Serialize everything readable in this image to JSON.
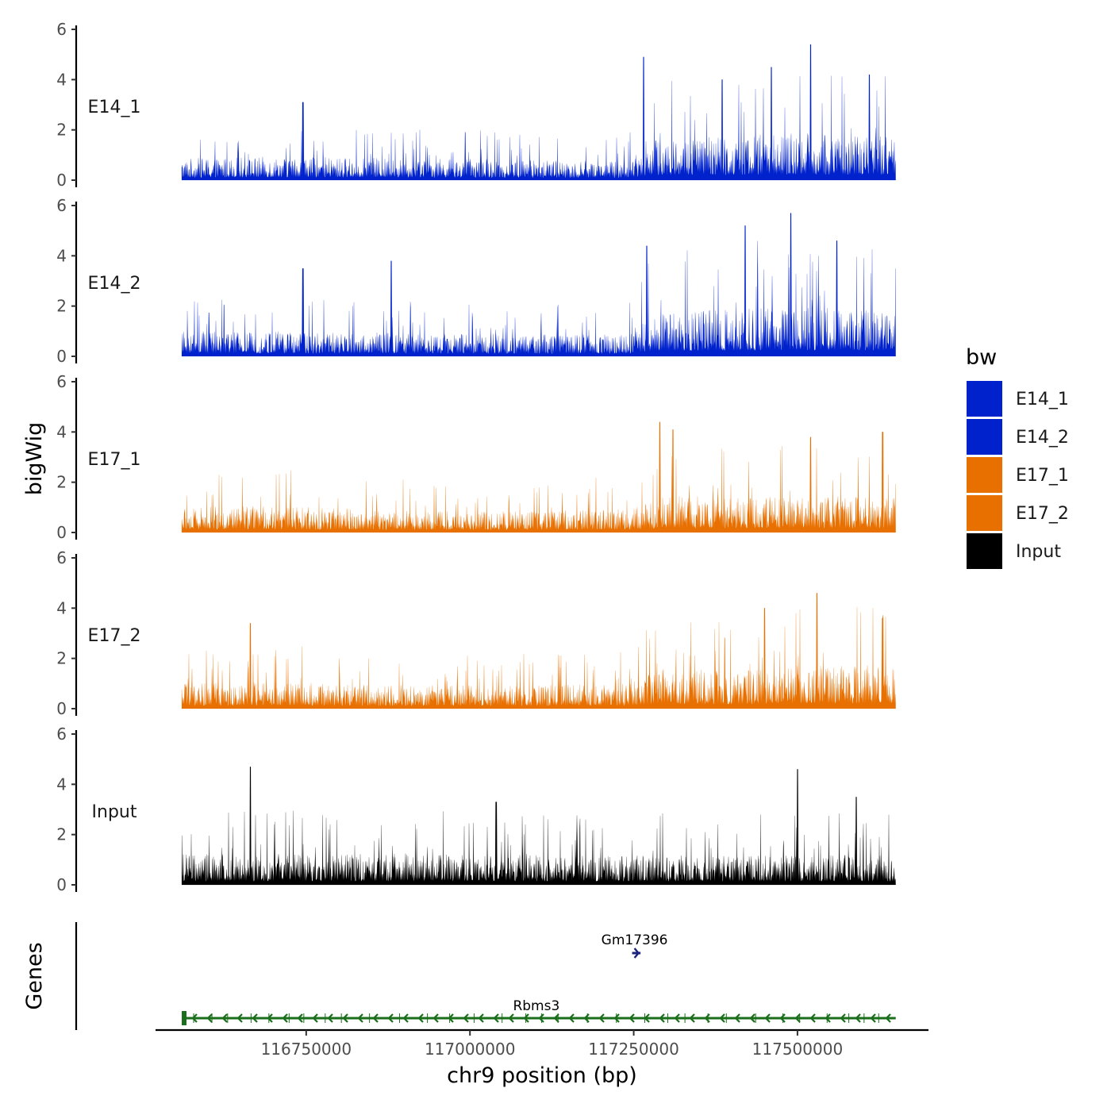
{
  "chart_data": {
    "type": "area",
    "title": "",
    "xlabel": "chr9 position (bp)",
    "ylabel": "bigWig",
    "genes_label": "Genes",
    "xlim": [
      116520000,
      117700000
    ],
    "data_range": [
      116560000,
      117650000
    ],
    "ylim": [
      0,
      6
    ],
    "y_ticks": [
      0,
      2,
      4,
      6
    ],
    "y_tick_labels": [
      "0",
      "2",
      "4",
      "6"
    ],
    "x_ticks": [
      116750000,
      117000000,
      117250000,
      117500000
    ],
    "x_tick_labels": [
      "116750000",
      "117000000",
      "117250000",
      "117500000"
    ],
    "series": [
      {
        "name": "E14_1",
        "color": "#0022cc",
        "profile_x": [
          116560000,
          116700000,
          116900000,
          117100000,
          117240000,
          117280000,
          117400000,
          117500000,
          117650000
        ],
        "profile_base": [
          0.7,
          0.75,
          0.7,
          0.65,
          0.6,
          1.3,
          1.4,
          1.5,
          1.4
        ],
        "peaks": [
          [
            116745000,
            3.1
          ],
          [
            117265000,
            4.9
          ],
          [
            117385000,
            4.0
          ],
          [
            117460000,
            4.5
          ],
          [
            117520000,
            5.4
          ],
          [
            117610000,
            4.2
          ]
        ]
      },
      {
        "name": "E14_2",
        "color": "#0022cc",
        "profile_x": [
          116560000,
          116700000,
          116900000,
          117100000,
          117240000,
          117280000,
          117400000,
          117500000,
          117650000
        ],
        "profile_base": [
          0.8,
          0.8,
          0.75,
          0.7,
          0.7,
          1.4,
          1.5,
          1.6,
          1.4
        ],
        "peaks": [
          [
            116745000,
            3.5
          ],
          [
            116880000,
            3.8
          ],
          [
            117270000,
            4.4
          ],
          [
            117420000,
            5.2
          ],
          [
            117490000,
            5.7
          ],
          [
            117560000,
            4.6
          ]
        ]
      },
      {
        "name": "E17_1",
        "color": "#e87000",
        "profile_x": [
          116560000,
          116700000,
          116900000,
          117100000,
          117240000,
          117300000,
          117400000,
          117500000,
          117650000
        ],
        "profile_base": [
          0.8,
          0.85,
          0.7,
          0.7,
          0.75,
          1.2,
          1.1,
          1.2,
          1.1
        ],
        "peaks": [
          [
            117290000,
            4.4
          ],
          [
            117310000,
            4.1
          ],
          [
            117520000,
            3.8
          ],
          [
            117630000,
            4.0
          ]
        ]
      },
      {
        "name": "E17_2",
        "color": "#e87000",
        "profile_x": [
          116560000,
          116700000,
          116900000,
          117100000,
          117240000,
          117300000,
          117400000,
          117500000,
          117650000
        ],
        "profile_base": [
          0.8,
          0.85,
          0.75,
          0.75,
          0.8,
          1.3,
          1.2,
          1.4,
          1.4
        ],
        "peaks": [
          [
            116665000,
            3.4
          ],
          [
            117450000,
            4.0
          ],
          [
            117530000,
            4.6
          ],
          [
            117630000,
            3.6
          ]
        ]
      },
      {
        "name": "Input",
        "color": "#000000",
        "profile_x": [
          116560000,
          117000000,
          117300000,
          117650000
        ],
        "profile_base": [
          1.0,
          1.0,
          0.95,
          0.95
        ],
        "peaks": [
          [
            116665000,
            4.7
          ],
          [
            117500000,
            4.6
          ],
          [
            117590000,
            3.5
          ],
          [
            117040000,
            3.3
          ]
        ]
      }
    ],
    "legend": {
      "title": "bw",
      "position": "right",
      "entries": [
        {
          "label": "E14_1",
          "color": "#0022cc"
        },
        {
          "label": "E14_2",
          "color": "#0022cc"
        },
        {
          "label": "E17_1",
          "color": "#e87000"
        },
        {
          "label": "E17_2",
          "color": "#e87000"
        },
        {
          "label": "Input",
          "color": "#000000"
        }
      ]
    },
    "genes": [
      {
        "name": "Gm17396",
        "start": 117250000,
        "end": 117258000,
        "strand": "+",
        "color": "#1a237e",
        "row": 1
      },
      {
        "name": "Rbms3",
        "start": 116560000,
        "end": 117650000,
        "strand": "-",
        "color": "#1b6e1b",
        "row": 0
      }
    ]
  }
}
